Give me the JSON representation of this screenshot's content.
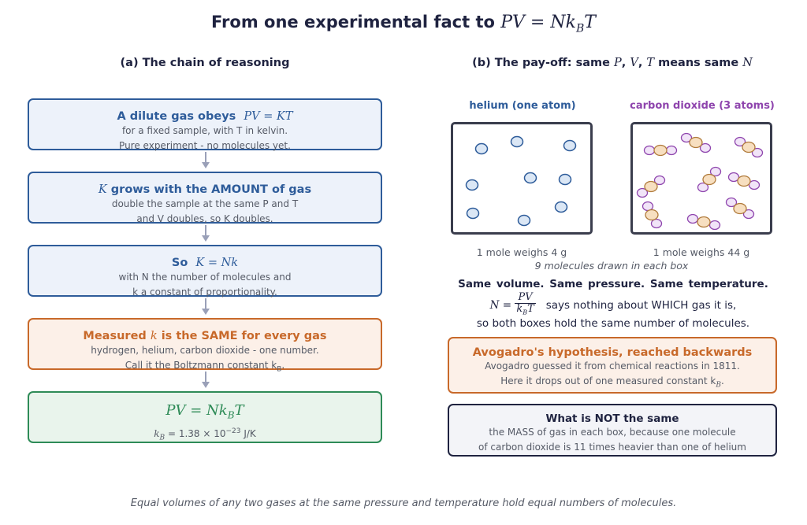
{
  "title": {
    "prefix": "From one experimental fact to ",
    "equation": "PV = Nk",
    "sub": "B",
    "tail": "T"
  },
  "panel_a": {
    "heading": "(a) The chain of reasoning",
    "boxes": [
      {
        "title_text": "A dilute gas obeys",
        "title_math": "PV = KT",
        "line1": "for a fixed sample, with T in kelvin.",
        "line2": "Pure experiment - no molecules yet."
      },
      {
        "title_math": "K",
        "title_text": " grows with the AMOUNT of gas",
        "line1": "double the sample at the same P and T",
        "line2": "and V doubles, so K doubles."
      },
      {
        "title_text": "So",
        "title_math": "K = Nk",
        "line1": "with N the number of molecules and",
        "line2": "k a constant of proportionality."
      },
      {
        "title_text_a": "Measured ",
        "title_math": "k",
        "title_text_b": " is the SAME for every gas",
        "line1": "hydrogen, helium, carbon dioxide - one number.",
        "line2": "Call it the Boltzmann constant k",
        "line2_sub": "B",
        "line2_end": "."
      },
      {
        "title_math": "PV = Nk",
        "title_sub": "B",
        "title_end": "T",
        "line1": "k",
        "line1_sub": "B",
        "line1_end": " = 1.38 × 10",
        "line1_sup": "−23",
        "line1_unit": " J/K"
      }
    ]
  },
  "panel_b": {
    "heading_a": "(b) The pay-off: same ",
    "heading_P": "P",
    "heading_c1": ", ",
    "heading_V": "V",
    "heading_c2": ", ",
    "heading_T": "T",
    "heading_mid": " means same ",
    "heading_N": "N",
    "gases": [
      {
        "label": "helium  (one atom)",
        "color": "#2e5c9a",
        "mass": "1 mole weighs 4 g"
      },
      {
        "label": "carbon dioxide  (3 atoms)",
        "color": "#8e44ad",
        "mass": "1 mole weighs 44 g"
      }
    ],
    "note": "9 molecules drawn in each box",
    "same_line": "Same volume.   Same pressure.   Same temperature.",
    "formula_lhs": "N =",
    "formula_num": "PV",
    "formula_den": "k",
    "formula_den_sub": "B",
    "formula_den_end": "T",
    "formula_text": "says nothing about WHICH gas it is,",
    "conclusion": "so both boxes hold the same number of molecules.",
    "avogadro": {
      "title": "Avogadro's hypothesis, reached backwards",
      "line1": "Avogadro guessed it from chemical reactions in 1811.",
      "line2": "Here it drops out of one measured constant k",
      "line2_sub": "B",
      "line2_end": "."
    },
    "not_same": {
      "title": "What is NOT the same",
      "line1": "the MASS of gas in each box, because one molecule",
      "line2": "of carbon dioxide is 11 times heavier than one of helium"
    }
  },
  "footer": "Equal volumes of any two gases at the same pressure and temperature hold equal numbers of molecules.",
  "colors": {
    "blue": "#2e5c9a",
    "orange": "#c8692a",
    "green": "#2e8b57",
    "purple": "#8e44ad",
    "helium_fill": "#dbe7f5",
    "co2_center_fill": "#f7dfc0",
    "co2_center_stroke": "#b07a3a",
    "co2_outer_fill": "#f1e4f8"
  }
}
